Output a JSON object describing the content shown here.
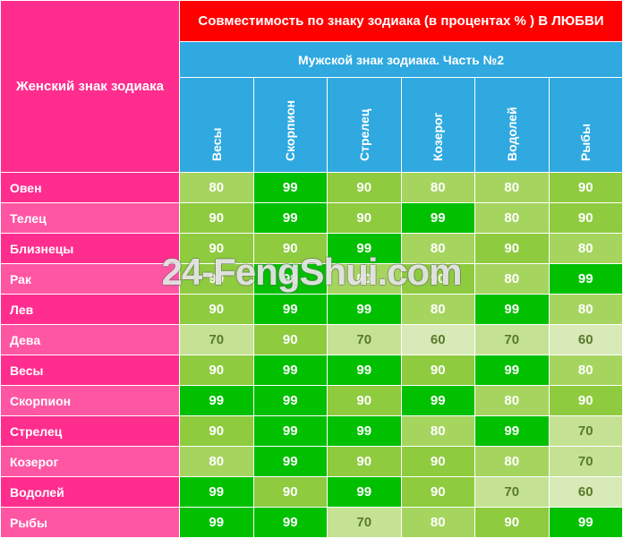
{
  "headers": {
    "corner": "Женский знак зодиака",
    "red": "Совместимость по знаку зодиака (в процентах % ) В ЛЮБВИ",
    "blue": "Мужской знак зодиака. Часть №2"
  },
  "columns": [
    "Весы",
    "Скорпион",
    "Стрелец",
    "Козерог",
    "Водолей",
    "Рыбы"
  ],
  "row_labels": [
    "Овен",
    "Телец",
    "Близнецы",
    "Рак",
    "Лев",
    "Дева",
    "Весы",
    "Скорпион",
    "Стрелец",
    "Козерог",
    "Водолей",
    "Рыбы"
  ],
  "row_label_colors": {
    "odd": "#ff2d8e",
    "even": "#ff56a3"
  },
  "cell_colors": {
    "99": "#00c000",
    "90": "#8ecb3f",
    "80": "#a6d55f",
    "70": "#c5e294",
    "60": "#d8eab7"
  },
  "values": [
    [
      80,
      99,
      90,
      80,
      80,
      90
    ],
    [
      90,
      99,
      90,
      99,
      80,
      90
    ],
    [
      90,
      90,
      99,
      80,
      90,
      80
    ],
    [
      90,
      99,
      80,
      90,
      80,
      99
    ],
    [
      90,
      99,
      99,
      80,
      99,
      80
    ],
    [
      70,
      90,
      70,
      60,
      70,
      60
    ],
    [
      90,
      99,
      99,
      90,
      99,
      80
    ],
    [
      99,
      99,
      90,
      99,
      80,
      90
    ],
    [
      90,
      99,
      99,
      80,
      99,
      70
    ],
    [
      80,
      99,
      90,
      90,
      80,
      70
    ],
    [
      99,
      90,
      99,
      90,
      70,
      60
    ],
    [
      99,
      99,
      70,
      80,
      90,
      99
    ]
  ],
  "watermark": "24-FengShui.com"
}
